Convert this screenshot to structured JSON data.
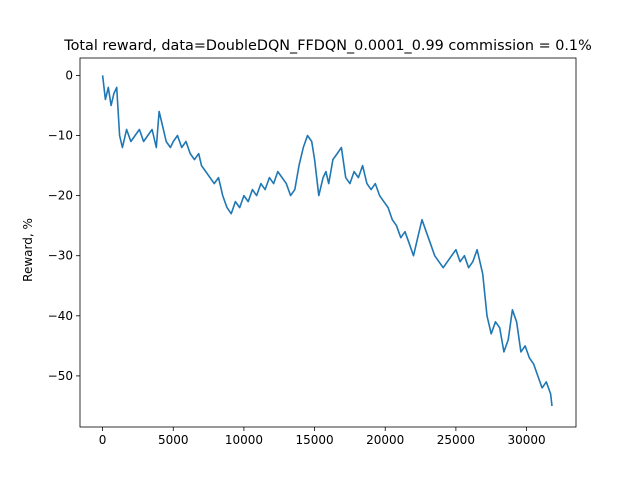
{
  "chart_data": {
    "type": "line",
    "title": "Total reward, data=DoubleDQN_FFDQN_0.0001_0.99 commission = 0.1%",
    "xlabel": "",
    "ylabel": "Reward, %",
    "xlim": [
      -1600,
      33500
    ],
    "ylim": [
      -58.5,
      2.9
    ],
    "xticks": [
      0,
      5000,
      10000,
      15000,
      20000,
      25000,
      30000
    ],
    "xtick_labels": [
      "0",
      "5000",
      "10000",
      "15000",
      "20000",
      "25000",
      "30000"
    ],
    "yticks": [
      0,
      -10,
      -20,
      -30,
      -40,
      -50
    ],
    "ytick_labels": [
      "0",
      "−10",
      "−20",
      "−30",
      "−40",
      "−50"
    ],
    "grid": false,
    "legend": "none",
    "line_color": "#1f77b4",
    "series": [
      {
        "x": [
          0,
          200,
          400,
          600,
          800,
          1000,
          1200,
          1400,
          1700,
          2000,
          2300,
          2600,
          2900,
          3200,
          3500,
          3800,
          4000,
          4200,
          4500,
          4800,
          5000,
          5300,
          5600,
          5900,
          6200,
          6500,
          6800,
          7000,
          7300,
          7600,
          7900,
          8200,
          8500,
          8800,
          9100,
          9400,
          9700,
          10000,
          10300,
          10600,
          10900,
          11200,
          11500,
          11800,
          12100,
          12400,
          12700,
          13000,
          13300,
          13600,
          13900,
          14200,
          14500,
          14800,
          15000,
          15300,
          15600,
          15800,
          16000,
          16300,
          16600,
          16900,
          17200,
          17500,
          17800,
          18100,
          18400,
          18700,
          19000,
          19300,
          19600,
          19900,
          20200,
          20500,
          20800,
          21100,
          21400,
          21700,
          22000,
          22300,
          22600,
          22900,
          23200,
          23500,
          23800,
          24100,
          24400,
          24700,
          25000,
          25300,
          25600,
          25900,
          26200,
          26500,
          26700,
          26900,
          27200,
          27500,
          27800,
          28100,
          28400,
          28700,
          29000,
          29300,
          29600,
          29900,
          30200,
          30500,
          30800,
          31100,
          31400,
          31700,
          31800
        ],
        "y": [
          0,
          -4,
          -2,
          -5,
          -3,
          -2,
          -10,
          -12,
          -9,
          -11,
          -10,
          -9,
          -11,
          -10,
          -9,
          -12,
          -6,
          -8,
          -11,
          -12,
          -11,
          -10,
          -12,
          -11,
          -13,
          -14,
          -13,
          -15,
          -16,
          -17,
          -18,
          -17,
          -20,
          -22,
          -23,
          -21,
          -22,
          -20,
          -21,
          -19,
          -20,
          -18,
          -19,
          -17,
          -18,
          -16,
          -17,
          -18,
          -20,
          -19,
          -15,
          -12,
          -10,
          -11,
          -14,
          -20,
          -17,
          -16,
          -18,
          -14,
          -13,
          -12,
          -17,
          -18,
          -16,
          -17,
          -15,
          -18,
          -19,
          -18,
          -20,
          -21,
          -22,
          -24,
          -25,
          -27,
          -26,
          -28,
          -30,
          -27,
          -24,
          -26,
          -28,
          -30,
          -31,
          -32,
          -31,
          -30,
          -29,
          -31,
          -30,
          -32,
          -31,
          -29,
          -31,
          -33,
          -40,
          -43,
          -41,
          -42,
          -46,
          -44,
          -39,
          -41,
          -46,
          -45,
          -47,
          -48,
          -50,
          -52,
          -51,
          -53,
          -55
        ]
      }
    ]
  }
}
